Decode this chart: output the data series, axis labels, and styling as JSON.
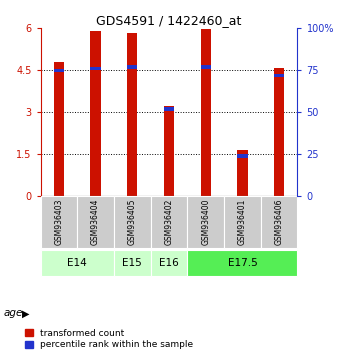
{
  "title": "GDS4591 / 1422460_at",
  "samples": [
    "GSM936403",
    "GSM936404",
    "GSM936405",
    "GSM936402",
    "GSM936400",
    "GSM936401",
    "GSM936406"
  ],
  "transformed_counts": [
    4.8,
    5.9,
    5.85,
    3.2,
    5.98,
    1.65,
    4.57
  ],
  "percentile_ranks": [
    76,
    77,
    78,
    53,
    78,
    25,
    73
  ],
  "age_groups": [
    {
      "label": "E14",
      "spans": [
        0,
        1
      ]
    },
    {
      "label": "E15",
      "spans": [
        2,
        2
      ]
    },
    {
      "label": "E16",
      "spans": [
        3,
        3
      ]
    },
    {
      "label": "E17.5",
      "spans": [
        4,
        6
      ]
    }
  ],
  "ylim_left": [
    0,
    6
  ],
  "ylim_right": [
    0,
    100
  ],
  "yticks_left": [
    0,
    1.5,
    3,
    4.5,
    6
  ],
  "yticks_right": [
    0,
    25,
    50,
    75,
    100
  ],
  "bar_color_red": "#cc1100",
  "bar_color_blue": "#2233cc",
  "bar_width": 0.28,
  "blue_bar_width": 0.28,
  "blue_bar_height": 0.13,
  "bg_sample_color": "#cccccc",
  "age_e14_color": "#ccffcc",
  "age_e175_color": "#55ee55",
  "legend_red_label": "transformed count",
  "legend_blue_label": "percentile rank within the sample",
  "age_label": "age"
}
